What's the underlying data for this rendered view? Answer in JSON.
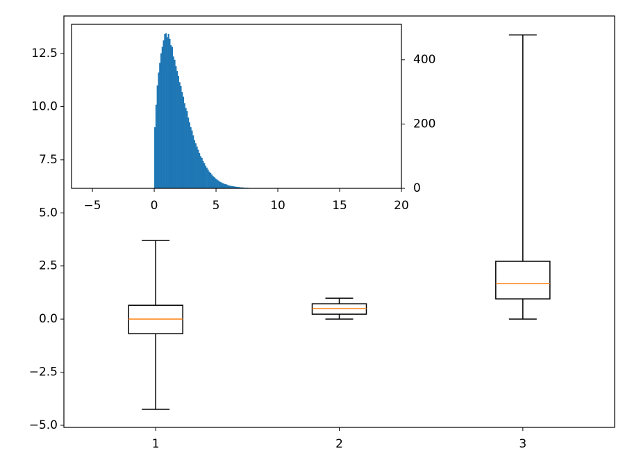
{
  "chart_data": [
    {
      "type": "boxplot",
      "categories": [
        "1",
        "2",
        "3"
      ],
      "boxes": [
        {
          "whislo": -4.25,
          "q1": -0.69,
          "med": 0,
          "q3": 0.65,
          "whishi": 3.7
        },
        {
          "whislo": 0,
          "q1": 0.23,
          "med": 0.49,
          "q3": 0.72,
          "whishi": 0.98
        },
        {
          "whislo": 0,
          "q1": 0.95,
          "med": 1.67,
          "q3": 2.72,
          "whishi": 13.38
        }
      ],
      "color": "#000000",
      "median_color": "#ff7f0e",
      "xlim": [
        0.5,
        3.5
      ],
      "ylim": [
        -5.1,
        14.27
      ],
      "yticks": [
        {
          "value": -5,
          "label": "−5.0"
        },
        {
          "value": -2.5,
          "label": "−2.5"
        },
        {
          "value": 0,
          "label": "0.0"
        },
        2.5,
        {
          "value": 5,
          "label": "5.0"
        },
        7.5,
        {
          "value": 10,
          "label": "10.0"
        },
        12.5
      ]
    },
    {
      "type": "histogram",
      "color": "#1f77b4",
      "y_axis_side": "right",
      "bins": [
        0,
        0.1,
        0.2,
        0.3,
        0.4,
        0.5,
        0.6,
        0.7,
        0.8,
        0.9,
        1,
        1.1,
        1.2,
        1.3,
        1.4,
        1.5,
        1.6,
        1.7,
        1.8,
        1.9,
        2,
        2.1,
        2.2,
        2.3,
        2.4,
        2.5,
        2.6,
        2.7,
        2.8,
        2.9,
        3,
        3.1,
        3.2,
        3.3,
        3.4,
        3.5,
        3.6,
        3.7,
        3.8,
        3.9,
        4,
        4.1,
        4.2,
        4.3,
        4.4,
        4.5,
        4.6,
        4.7,
        4.8,
        4.9,
        5,
        5.1,
        5.2,
        5.3,
        5.4,
        5.5,
        5.6,
        5.7,
        5.8,
        5.9,
        6,
        6.1,
        6.2,
        6.3,
        6.4,
        6.5,
        6.6,
        6.7,
        6.8,
        6.9,
        7,
        7.1,
        7.2,
        7.3,
        7.4,
        7.5,
        7.6,
        7.7,
        7.8,
        7.9,
        8,
        8.1,
        8.2,
        8.3,
        8.4,
        8.5,
        8.6,
        8.7,
        8.8,
        8.9,
        9,
        9.1,
        9.2,
        9.3,
        9.4,
        9.5,
        9.6,
        9.7,
        9.8,
        9.9,
        10
      ],
      "counts": [
        190,
        260,
        320,
        360,
        390,
        420,
        440,
        460,
        480,
        482,
        470,
        480,
        465,
        445,
        440,
        410,
        400,
        380,
        365,
        350,
        330,
        318,
        300,
        285,
        265,
        250,
        240,
        220,
        205,
        190,
        180,
        165,
        150,
        140,
        130,
        120,
        110,
        100,
        95,
        85,
        78,
        70,
        64,
        58,
        52,
        48,
        43,
        38,
        35,
        31,
        28,
        25,
        22,
        20,
        18,
        16,
        14,
        13,
        12,
        10,
        9,
        8,
        7,
        7,
        6,
        5,
        5,
        4,
        4,
        3,
        3,
        3,
        2,
        2,
        2,
        2,
        1,
        1,
        1,
        1,
        1,
        1,
        0,
        1,
        0,
        1,
        0,
        0,
        1,
        0,
        0,
        0,
        1,
        0,
        0,
        0,
        0,
        0,
        1,
        0
      ],
      "xlim": [
        -6.69,
        20
      ],
      "xticks": [
        {
          "value": -5,
          "label": "−5"
        },
        0,
        5,
        10,
        15,
        20
      ],
      "ylim": [
        0,
        510
      ],
      "yticks": [
        0,
        200,
        400
      ]
    }
  ]
}
